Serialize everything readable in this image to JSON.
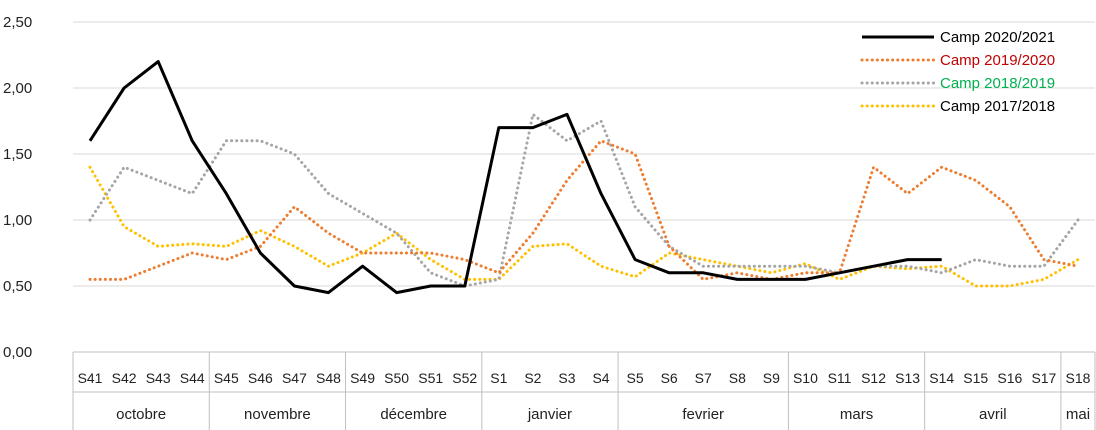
{
  "chart_data": {
    "type": "line",
    "title": "",
    "xlabel": "",
    "ylabel": "",
    "ylim": [
      0,
      2.5
    ],
    "yticks": [
      "0,00",
      "0,50",
      "1,00",
      "1,50",
      "2,00",
      "2,50"
    ],
    "grid": true,
    "legend_position": "top-right",
    "categories": [
      "S41",
      "S42",
      "S43",
      "S44",
      "S45",
      "S46",
      "S47",
      "S48",
      "S49",
      "S50",
      "S51",
      "S52",
      "S1",
      "S2",
      "S3",
      "S4",
      "S5",
      "S6",
      "S7",
      "S8",
      "S9",
      "S10",
      "S11",
      "S12",
      "S13",
      "S14",
      "S15",
      "S16",
      "S17",
      "S18"
    ],
    "months": [
      {
        "label": "octobre",
        "span": 4
      },
      {
        "label": "novembre",
        "span": 4
      },
      {
        "label": "décembre",
        "span": 4
      },
      {
        "label": "janvier",
        "span": 4
      },
      {
        "label": "fevrier",
        "span": 5
      },
      {
        "label": "mars",
        "span": 4
      },
      {
        "label": "avril",
        "span": 4
      },
      {
        "label": "mai",
        "span": 1
      }
    ],
    "series": [
      {
        "name": "Camp 2020/2021",
        "color": "#000000",
        "label_color": "#000000",
        "style": "solid",
        "values": [
          1.6,
          2.0,
          2.2,
          1.6,
          1.2,
          0.75,
          0.5,
          0.45,
          0.65,
          0.45,
          0.5,
          0.5,
          1.7,
          1.7,
          1.8,
          1.2,
          0.7,
          0.6,
          0.6,
          0.55,
          0.55,
          0.55,
          0.6,
          0.65,
          0.7,
          0.7,
          null,
          null,
          null,
          null
        ]
      },
      {
        "name": "Camp 2019/2020",
        "color": "#ED7D31",
        "label_color": "#C00000",
        "style": "dotted",
        "values": [
          0.55,
          0.55,
          0.65,
          0.75,
          0.7,
          0.8,
          1.1,
          0.9,
          0.75,
          0.75,
          0.75,
          0.7,
          0.6,
          0.9,
          1.3,
          1.6,
          1.5,
          0.8,
          0.55,
          0.6,
          0.55,
          0.6,
          0.6,
          1.4,
          1.2,
          1.4,
          1.3,
          1.1,
          0.7,
          0.65
        ]
      },
      {
        "name": "Camp 2018/2019",
        "color": "#A5A5A5",
        "label_color": "#00B050",
        "style": "dotted",
        "values": [
          1.0,
          1.4,
          1.3,
          1.2,
          1.6,
          1.6,
          1.5,
          1.2,
          1.05,
          0.9,
          0.6,
          0.5,
          0.55,
          1.8,
          1.6,
          1.75,
          1.1,
          0.8,
          0.65,
          0.65,
          0.65,
          0.65,
          0.6,
          0.65,
          0.65,
          0.6,
          0.7,
          0.65,
          0.65,
          1.0
        ]
      },
      {
        "name": "Camp 2017/2018",
        "color": "#FFC000",
        "label_color": "#000000",
        "style": "dotted",
        "values": [
          1.4,
          0.95,
          0.8,
          0.82,
          0.8,
          0.92,
          0.8,
          0.65,
          0.75,
          0.9,
          0.7,
          0.55,
          0.55,
          0.8,
          0.82,
          0.65,
          0.57,
          0.75,
          0.7,
          0.65,
          0.6,
          0.67,
          0.55,
          0.65,
          0.63,
          0.65,
          0.5,
          0.5,
          0.55,
          0.7
        ]
      }
    ]
  }
}
